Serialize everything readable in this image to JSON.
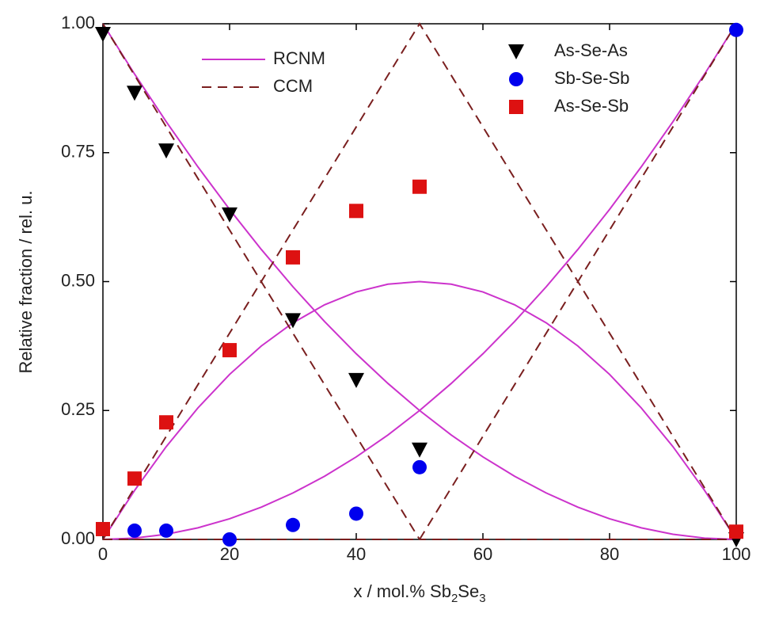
{
  "chart_data": {
    "type": "line",
    "xlabel": {
      "parts": [
        "x / mol.% Sb",
        "2",
        "Se",
        "3"
      ]
    },
    "ylabel": "Relative fraction / rel. u.",
    "xlim": [
      0,
      100
    ],
    "ylim": [
      0,
      1
    ],
    "xticks": [
      0,
      20,
      40,
      60,
      80,
      100
    ],
    "yticks": [
      {
        "value": 0,
        "label": "0.00"
      },
      {
        "value": 0.25,
        "label": "0.25"
      },
      {
        "value": 0.5,
        "label": "0.50"
      },
      {
        "value": 0.75,
        "label": "0.75"
      },
      {
        "value": 1,
        "label": "1.00"
      }
    ],
    "models": [
      {
        "name": "RCNM",
        "color": "#cc33cc",
        "dashed": false,
        "x": [
          0,
          5,
          10,
          15,
          20,
          25,
          30,
          35,
          40,
          45,
          50,
          55,
          60,
          65,
          70,
          75,
          80,
          85,
          90,
          95,
          100
        ],
        "curves": [
          [
            1,
            0.9025,
            0.81,
            0.7225,
            0.64,
            0.5625,
            0.49,
            0.4225,
            0.36,
            0.3025,
            0.25,
            0.2025,
            0.16,
            0.1225,
            0.09,
            0.0625,
            0.04,
            0.0225,
            0.01,
            0.0025,
            0
          ],
          [
            0,
            0.0025,
            0.01,
            0.0225,
            0.04,
            0.0625,
            0.09,
            0.1225,
            0.16,
            0.2025,
            0.25,
            0.3025,
            0.36,
            0.4225,
            0.49,
            0.5625,
            0.64,
            0.7225,
            0.81,
            0.9025,
            1
          ],
          [
            0,
            0.095,
            0.18,
            0.255,
            0.32,
            0.375,
            0.42,
            0.455,
            0.48,
            0.495,
            0.5,
            0.495,
            0.48,
            0.455,
            0.42,
            0.375,
            0.32,
            0.255,
            0.18,
            0.095,
            0
          ]
        ]
      },
      {
        "name": "CCM",
        "color": "#7a1f1f",
        "dashed": true,
        "x": [
          0,
          50,
          100
        ],
        "curves": [
          [
            1,
            0,
            0
          ],
          [
            0,
            0,
            1
          ],
          [
            0,
            1,
            0
          ]
        ]
      }
    ],
    "series": [
      {
        "name": "As-Se-As",
        "color": "#000000",
        "marker": "triangle-down",
        "x": [
          0,
          5,
          10,
          20,
          30,
          40,
          50,
          100
        ],
        "values": [
          0.98,
          0.866,
          0.754,
          0.63,
          0.425,
          0.309,
          0.174,
          0
        ]
      },
      {
        "name": "Sb-Se-Sb",
        "color": "#0000ee",
        "marker": "circle",
        "x": [
          5,
          10,
          20,
          30,
          40,
          50,
          100
        ],
        "values": [
          0.017,
          0.017,
          0,
          0.028,
          0.05,
          0.14,
          0.988
        ]
      },
      {
        "name": "As-Se-Sb",
        "color": "#dd1111",
        "marker": "square",
        "x": [
          0,
          5,
          10,
          20,
          30,
          40,
          50,
          100
        ],
        "values": [
          0.02,
          0.118,
          0.227,
          0.367,
          0.547,
          0.637,
          0.684,
          0.015
        ]
      }
    ]
  }
}
